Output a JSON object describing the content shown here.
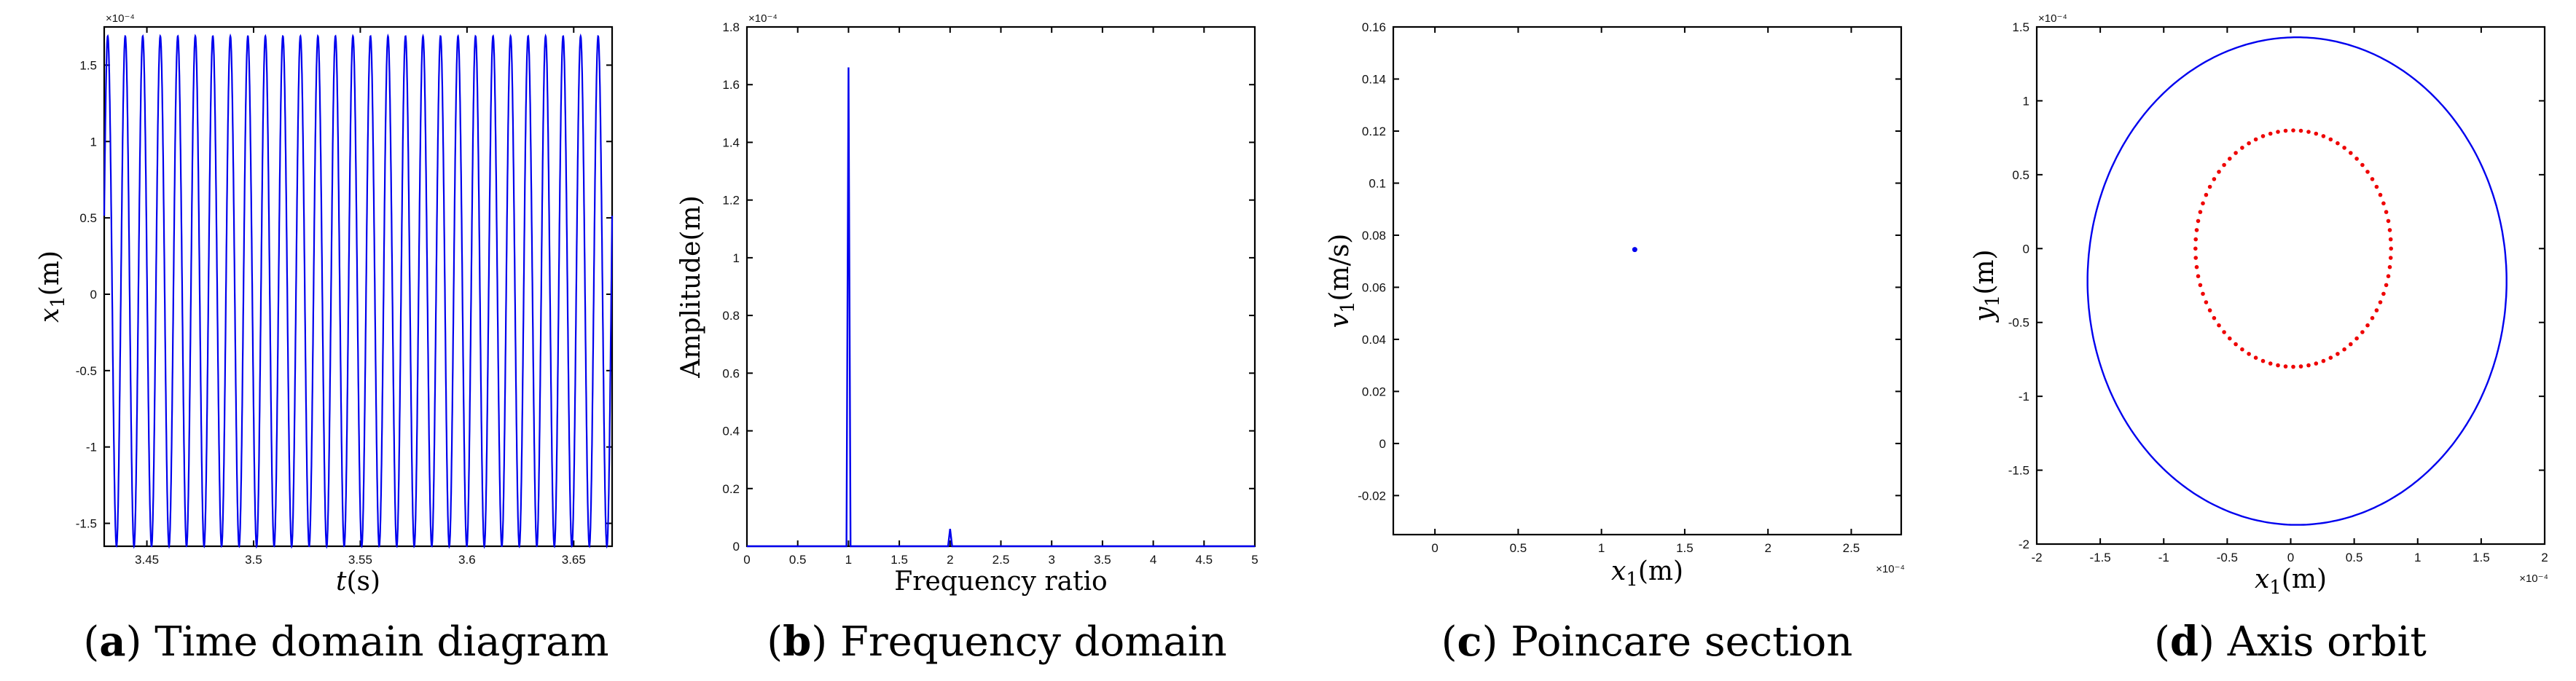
{
  "colors": {
    "blue": "#0000ee",
    "red": "#ee0000"
  },
  "panels": [
    {
      "id": "a",
      "caption": {
        "letter": "a",
        "text": "Time domain diagram"
      },
      "xlabel_italic": "t",
      "xlabel_rest": "(s)",
      "ylabel_italic": "x",
      "ylabel_sub": "1",
      "ylabel_rest": "(m)",
      "yexp": "×10⁻⁴",
      "xticks": [
        "3.45",
        "3.5",
        "3.55",
        "3.6",
        "3.65"
      ],
      "yticks": [
        "-1.5",
        "-1",
        "-0.5",
        "0",
        "0.5",
        "1",
        "1.5"
      ]
    },
    {
      "id": "b",
      "caption": {
        "letter": "b",
        "text": "Frequency domain"
      },
      "xlabel": "Frequency ratio",
      "ylabel": "Amplitude(m)",
      "yexp": "×10⁻⁴",
      "xticks": [
        "0",
        "0.5",
        "1",
        "1.5",
        "2",
        "2.5",
        "3",
        "3.5",
        "4",
        "4.5",
        "5"
      ],
      "yticks": [
        "0",
        "0.2",
        "0.4",
        "0.6",
        "0.8",
        "1",
        "1.2",
        "1.4",
        "1.6",
        "1.8"
      ]
    },
    {
      "id": "c",
      "caption": {
        "letter": "c",
        "text": "Poincare section"
      },
      "xlabel_italic": "x",
      "xlabel_sub": "1",
      "xlabel_rest": "(m)",
      "ylabel_italic": "v",
      "ylabel_sub": "1",
      "ylabel_rest": "(m/s)",
      "xexp": "×10⁻⁴",
      "xticks": [
        "0",
        "0.5",
        "1",
        "1.5",
        "2",
        "2.5"
      ],
      "yticks": [
        "-0.02",
        "0",
        "0.02",
        "0.04",
        "0.06",
        "0.08",
        "0.1",
        "0.12",
        "0.14",
        "0.16"
      ]
    },
    {
      "id": "d",
      "caption": {
        "letter": "d",
        "text": "Axis orbit"
      },
      "xlabel_italic": "x",
      "xlabel_sub": "1",
      "xlabel_rest": "(m)",
      "ylabel_italic": "y",
      "ylabel_sub": "1",
      "ylabel_rest": "(m)",
      "xexp": "×10⁻⁴",
      "yexp": "×10⁻⁴",
      "xticks": [
        "-2",
        "-1.5",
        "-1",
        "-0.5",
        "0",
        "0.5",
        "1",
        "1.5",
        "2"
      ],
      "yticks": [
        "-2",
        "-1.5",
        "-1",
        "-0.5",
        "0",
        "0.5",
        "1",
        "1.5"
      ]
    }
  ],
  "chart_data": [
    {
      "type": "line",
      "title": "",
      "xlim": [
        3.43,
        3.668
      ],
      "ylim": [
        -1.65,
        1.75
      ],
      "scale": "×10⁻⁴",
      "series": [
        {
          "kind": "sinusoid",
          "amplitude": 1.67,
          "offset": 0.02,
          "cycles": 29,
          "color": "blue"
        }
      ]
    },
    {
      "type": "line",
      "title": "",
      "xlim": [
        0,
        5
      ],
      "ylim": [
        0,
        1.8
      ],
      "scale": "×10⁻⁴",
      "series": [
        {
          "color": "blue",
          "x": [
            0,
            0.98,
            1.0,
            1.02,
            1.3,
            1.98,
            2.0,
            2.02,
            5
          ],
          "y": [
            0,
            0.0,
            1.66,
            0.0,
            0.0,
            0.0,
            0.06,
            0.0,
            0
          ]
        }
      ]
    },
    {
      "type": "scatter",
      "title": "",
      "xlim": [
        -0.25,
        2.8
      ],
      "ylim": [
        -0.035,
        0.16
      ],
      "xscale": "×10⁻⁴",
      "series": [
        {
          "color": "blue",
          "x": [
            1.2
          ],
          "y": [
            0.0745
          ]
        }
      ]
    },
    {
      "type": "scatter",
      "title": "",
      "xlim": [
        -2,
        2
      ],
      "ylim": [
        -2,
        1.5
      ],
      "scale": "×10⁻⁴",
      "series": [
        {
          "kind": "orbit-line",
          "color": "blue",
          "cx": 0.05,
          "cy": -0.22,
          "rx": 1.65,
          "ry_top": 1.65,
          "ry_bottom": 1.65,
          "skew": 0.0
        },
        {
          "kind": "orbit-dots",
          "color": "red",
          "cx": 0.02,
          "cy": 0.0,
          "rx": 0.77,
          "ry": 0.8,
          "points": 80
        }
      ]
    }
  ]
}
